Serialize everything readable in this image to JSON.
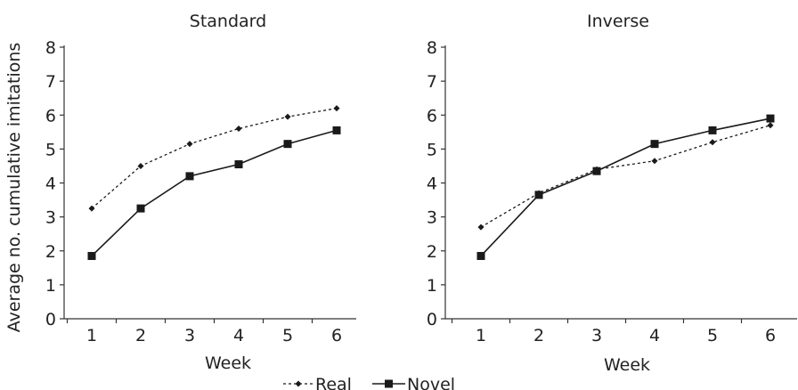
{
  "chart_data": [
    {
      "type": "line",
      "title": "Standard",
      "xlabel": "Week",
      "ylabel": "Average no. cumulative imitations",
      "x": [
        1,
        2,
        3,
        4,
        5,
        6
      ],
      "ylim": [
        0,
        8
      ],
      "yticks": [
        0,
        1,
        2,
        3,
        4,
        5,
        6,
        7,
        8
      ],
      "grid": false,
      "series": [
        {
          "name": "Real",
          "values": [
            3.25,
            4.5,
            5.15,
            5.6,
            5.95,
            6.2
          ]
        },
        {
          "name": "Novel",
          "values": [
            1.85,
            3.25,
            4.2,
            4.55,
            5.15,
            5.55
          ]
        }
      ]
    },
    {
      "type": "line",
      "title": "Inverse",
      "xlabel": "Week",
      "ylabel": "",
      "x": [
        1,
        2,
        3,
        4,
        5,
        6
      ],
      "ylim": [
        0,
        8
      ],
      "yticks": [
        0,
        1,
        2,
        3,
        4,
        5,
        6,
        7,
        8
      ],
      "grid": false,
      "series": [
        {
          "name": "Real",
          "values": [
            2.7,
            3.7,
            4.4,
            4.65,
            5.2,
            5.7
          ]
        },
        {
          "name": "Novel",
          "values": [
            1.85,
            3.65,
            4.35,
            5.15,
            5.55,
            5.9
          ]
        }
      ]
    }
  ],
  "legend": {
    "placement": "bottom-center",
    "items": [
      {
        "label": "Real",
        "style": "dotted-diamond"
      },
      {
        "label": "Novel",
        "style": "solid-square"
      }
    ]
  },
  "colors": {
    "line": "#1a1a1a",
    "axis": "#333333",
    "text": "#222222"
  }
}
